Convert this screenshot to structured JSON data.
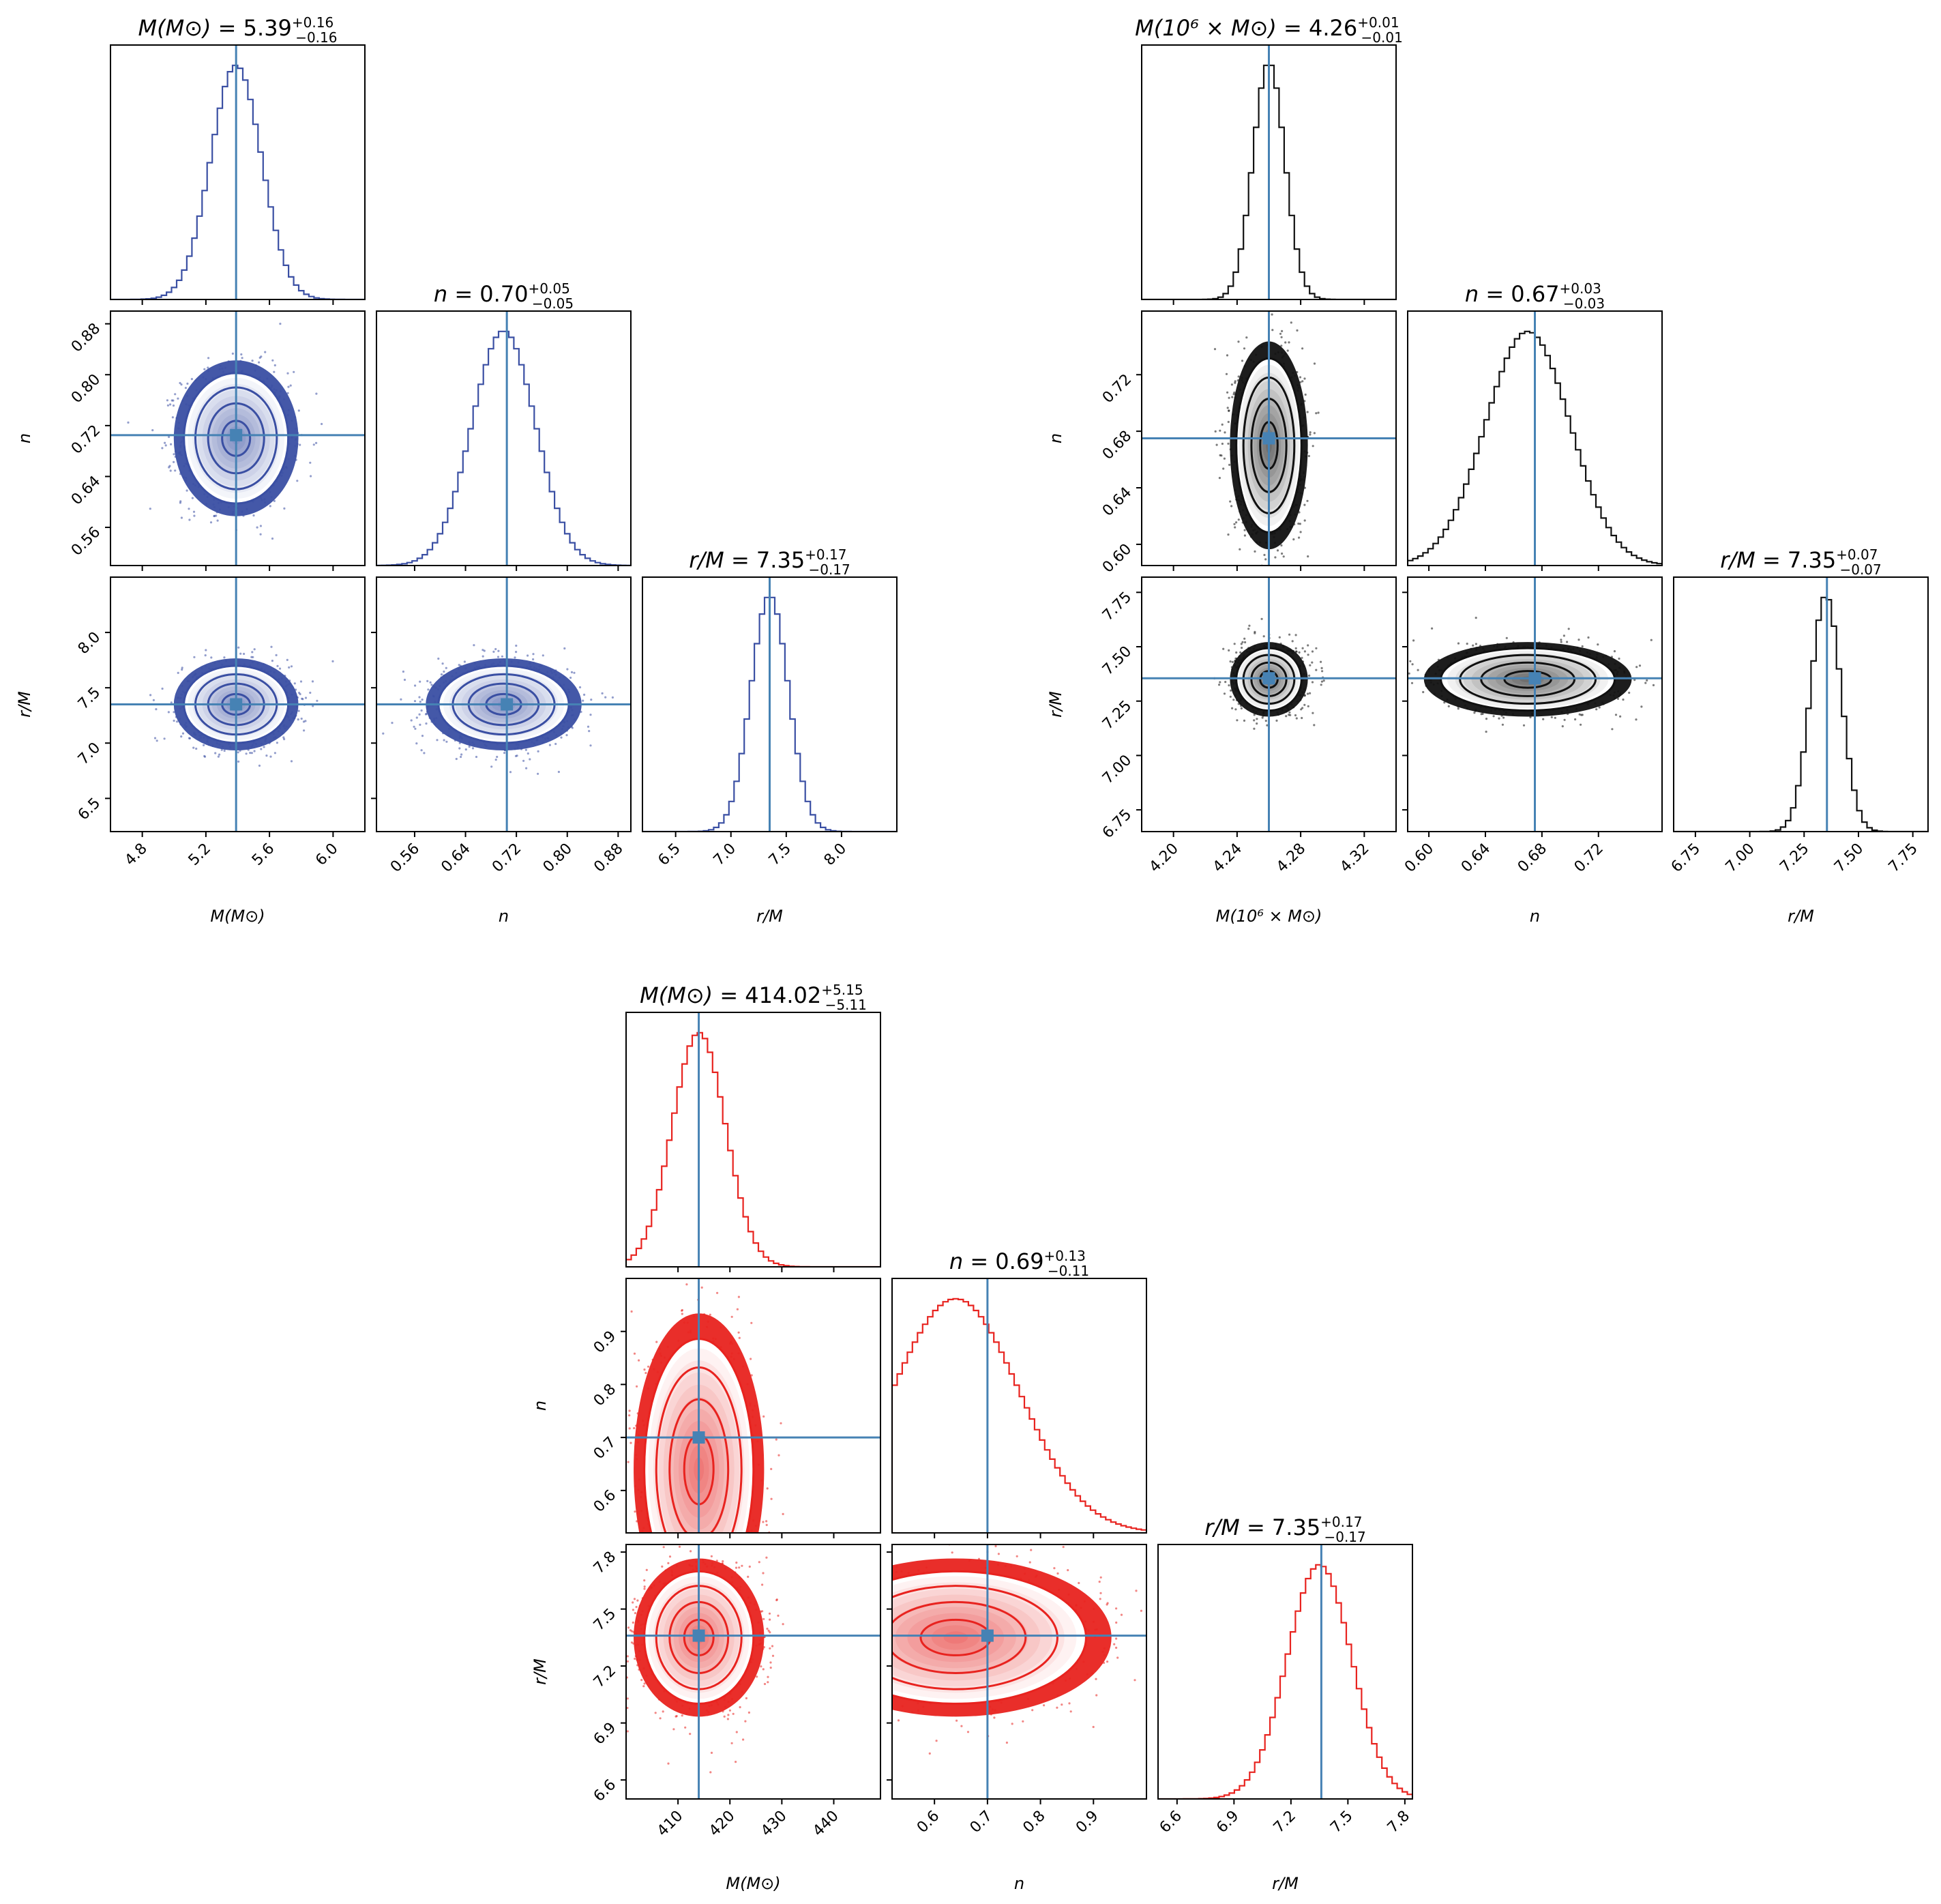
{
  "truth_line_color": "#4682b4",
  "chart_data": [
    {
      "type": "corner",
      "color": "#3a4fa3",
      "params": [
        {
          "key": "M",
          "label": "M(M⊙)",
          "range": [
            4.6,
            6.2
          ],
          "ticks": [
            4.8,
            5.2,
            5.6,
            6.0
          ],
          "tick_labels": [
            "4.8",
            "5.2",
            "5.6",
            "6.0"
          ],
          "truth": 5.39,
          "median": 5.39,
          "sigma": 0.16,
          "title_name": "M(M⊙)",
          "title_value": "5.39",
          "title_plus": "+0.16",
          "title_minus": "−0.16"
        },
        {
          "key": "n",
          "label": "n",
          "range": [
            0.5,
            0.9
          ],
          "ticks": [
            0.56,
            0.64,
            0.72,
            0.8,
            0.88
          ],
          "tick_labels": [
            "0.56",
            "0.64",
            "0.72",
            "0.80",
            "0.88"
          ],
          "truth": 0.705,
          "median": 0.7,
          "sigma": 0.05,
          "title_name": "n",
          "title_value": "0.70",
          "title_plus": "+0.05",
          "title_minus": "−0.05"
        },
        {
          "key": "r",
          "label": "r/M",
          "range": [
            6.2,
            8.5
          ],
          "ticks": [
            6.5,
            7.0,
            7.5,
            8.0
          ],
          "tick_labels": [
            "6.5",
            "7.0",
            "7.5",
            "8.0"
          ],
          "truth": 7.35,
          "median": 7.35,
          "sigma": 0.17,
          "title_name": "r/M",
          "title_value": "7.35",
          "title_plus": "+0.17",
          "title_minus": "−0.17"
        }
      ]
    },
    {
      "type": "corner",
      "color": "#111111",
      "params": [
        {
          "key": "M",
          "label": "M(10⁶ × M⊙)",
          "range": [
            4.18,
            4.34
          ],
          "ticks": [
            4.2,
            4.24,
            4.28,
            4.32
          ],
          "tick_labels": [
            "4.20",
            "4.24",
            "4.28",
            "4.32"
          ],
          "truth": 4.26,
          "median": 4.26,
          "sigma": 0.01,
          "title_name": "M(10⁶ × M⊙)",
          "title_value": "4.26",
          "title_plus": "+0.01",
          "title_minus": "−0.01"
        },
        {
          "key": "n",
          "label": "n",
          "range": [
            0.585,
            0.765
          ],
          "ticks": [
            0.6,
            0.64,
            0.68,
            0.72
          ],
          "tick_labels": [
            "0.60",
            "0.64",
            "0.68",
            "0.72"
          ],
          "truth": 0.675,
          "median": 0.67,
          "sigma": 0.03,
          "title_name": "n",
          "title_value": "0.67",
          "title_plus": "+0.03",
          "title_minus": "−0.03"
        },
        {
          "key": "r",
          "label": "r/M",
          "range": [
            6.65,
            7.82
          ],
          "ticks": [
            6.75,
            7.0,
            7.25,
            7.5,
            7.75
          ],
          "tick_labels": [
            "6.75",
            "7.00",
            "7.25",
            "7.50",
            "7.75"
          ],
          "truth": 7.355,
          "median": 7.35,
          "sigma": 0.07,
          "title_name": "r/M",
          "title_value": "7.35",
          "title_plus": "+0.07",
          "title_minus": "−0.07"
        }
      ]
    },
    {
      "type": "corner",
      "color": "#e8231f",
      "params": [
        {
          "key": "M",
          "label": "M(M⊙)",
          "range": [
            400,
            449
          ],
          "ticks": [
            410,
            420,
            430,
            440
          ],
          "tick_labels": [
            "410",
            "420",
            "430",
            "440"
          ],
          "truth": 414,
          "median": 414.02,
          "sigma": 5.13,
          "title_name": "M(M⊙)",
          "title_value": "414.02",
          "title_plus": "+5.15",
          "title_minus": "−5.11"
        },
        {
          "key": "n",
          "label": "n",
          "range": [
            0.52,
            1.0
          ],
          "ticks": [
            0.6,
            0.7,
            0.8,
            0.9
          ],
          "tick_labels": [
            "0.6",
            "0.7",
            "0.8",
            "0.9"
          ],
          "truth": 0.7,
          "median": 0.69,
          "sigma": 0.12,
          "title_name": "n",
          "title_value": "0.69",
          "title_plus": "+0.13",
          "title_minus": "−0.11"
        },
        {
          "key": "r",
          "label": "r/M",
          "range": [
            6.5,
            7.84
          ],
          "ticks": [
            6.6,
            6.9,
            7.2,
            7.5,
            7.8
          ],
          "tick_labels": [
            "6.6",
            "6.9",
            "7.2",
            "7.5",
            "7.8"
          ],
          "truth": 7.36,
          "median": 7.35,
          "sigma": 0.17,
          "title_name": "r/M",
          "title_value": "7.35",
          "title_plus": "+0.17",
          "title_minus": "−0.17"
        }
      ]
    }
  ]
}
